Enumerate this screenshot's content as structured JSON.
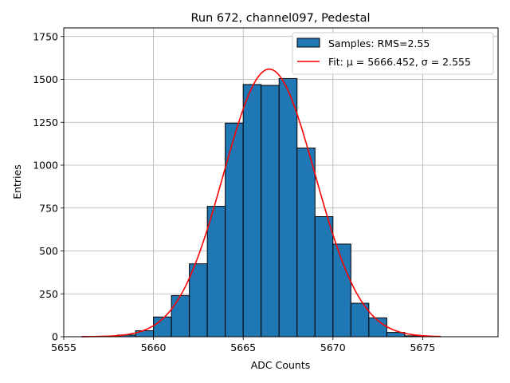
{
  "chart_data": {
    "type": "bar",
    "title": "Run 672, channel097, Pedestal",
    "xlabel": "ADC Counts",
    "ylabel": "Entries",
    "xlim": [
      5655,
      5679.2
    ],
    "ylim": [
      0,
      1800
    ],
    "x_ticks": [
      5655,
      5660,
      5665,
      5670,
      5675
    ],
    "x_tick_labels": [
      "5655",
      "5660",
      "5665",
      "5670",
      "5675"
    ],
    "y_ticks": [
      0,
      250,
      500,
      750,
      1000,
      1250,
      1500,
      1750
    ],
    "y_tick_labels": [
      "0",
      "250",
      "500",
      "750",
      "1000",
      "1250",
      "1500",
      "1750"
    ],
    "grid": true,
    "legend_position": "top-right",
    "series": [
      {
        "name": "Samples: RMS=2.55",
        "kind": "histogram",
        "color": "#1f77b4",
        "edge_color": "#000000",
        "bin_edges": [
          5656,
          5657,
          5658,
          5659,
          5660,
          5661,
          5662,
          5663,
          5664,
          5665,
          5666,
          5667,
          5668,
          5669,
          5670,
          5671,
          5672,
          5673,
          5674,
          5675,
          5676
        ],
        "values": [
          1,
          3,
          10,
          35,
          115,
          240,
          425,
          760,
          1245,
          1470,
          1465,
          1505,
          1100,
          700,
          540,
          195,
          110,
          25,
          5,
          1
        ]
      },
      {
        "name": "Fit: μ = 5666.452, σ = 2.555",
        "kind": "gaussian_fit",
        "color": "#ff0000",
        "mu": 5666.452,
        "sigma": 2.555,
        "amplitude": 1560,
        "x_range": [
          5656,
          5676
        ]
      }
    ]
  }
}
